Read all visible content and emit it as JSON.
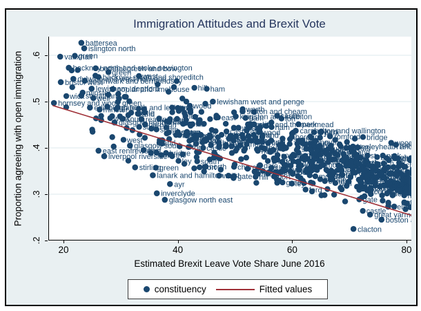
{
  "title": "Immigration Attitudes and Brexit Vote",
  "x_axis": {
    "label": "Estimated Brexit Leave Vote Share June 2016",
    "ticks": [
      20,
      40,
      60,
      80
    ],
    "min": 17.34,
    "max": 80.72
  },
  "y_axis": {
    "label": "Proportion agreeing with open immigration",
    "ticks": [
      {
        "value": 0.2,
        "label": ".2"
      },
      {
        "value": 0.3,
        "label": ".3"
      },
      {
        "value": 0.4,
        "label": ".4"
      },
      {
        "value": 0.5,
        "label": ".5"
      },
      {
        "value": 0.6,
        "label": ".6"
      }
    ],
    "top": 0.6403,
    "bottom": 0.2015
  },
  "legend": {
    "marker_label": "constituency",
    "line_label": "Fitted values"
  },
  "colors": {
    "marker": "#1a476f",
    "point_label_text": "#1a476f",
    "fit_line": "#a03138",
    "graph_bg": "#e9f0f2",
    "plot_bg": "#ffffff",
    "grid": "#dde9ec",
    "title": "#26365e",
    "border": "#000000"
  },
  "chart_data": {
    "type": "scatter",
    "series": [
      {
        "name": "constituency",
        "style": "navy-dots"
      },
      {
        "name": "Fitted values",
        "style": "maroon-line"
      }
    ],
    "x_range_shown": [
      17.34,
      80.72
    ],
    "y_range_shown": [
      0.2015,
      0.6403
    ],
    "grid": "horizontal-only",
    "legend_position": "bottom-center",
    "fitted_line": {
      "x1": 18.0,
      "y1": 0.4915,
      "x2": 80.8,
      "y2": 0.2541
    },
    "labeled_points": [
      {
        "name": "battersea",
        "x": 23.0,
        "y": 0.627
      },
      {
        "name": "islington north",
        "x": 23.5,
        "y": 0.615
      },
      {
        "name": "vauxhall",
        "x": 19.3,
        "y": 0.597
      },
      {
        "name": "hackney north and stoke newington",
        "x": 20.8,
        "y": 0.573
      },
      {
        "name": "bethnal green and bow",
        "x": 25.5,
        "y": 0.572
      },
      {
        "name": "dulwich and west norwood",
        "x": 21.6,
        "y": 0.549
      },
      {
        "name": "hackney south and shoreditch",
        "x": 26.0,
        "y": 0.553
      },
      {
        "name": "bristol west",
        "x": 19.4,
        "y": 0.542
      },
      {
        "name": "southwark and bermondsey",
        "x": 23.6,
        "y": 0.545
      },
      {
        "name": "lewisham, deptford",
        "x": 24.8,
        "y": 0.528
      },
      {
        "name": "poplar and limehouse",
        "x": 28.5,
        "y": 0.527
      },
      {
        "name": "streatham",
        "x": 23.0,
        "y": 0.513
      },
      {
        "name": "lewisham west and penge",
        "x": 46.0,
        "y": 0.5
      },
      {
        "name": "hornsey and wood green",
        "x": 18.2,
        "y": 0.497
      },
      {
        "name": "edinburgh north and leith",
        "x": 24.5,
        "y": 0.487
      },
      {
        "name": "sutton and cheam",
        "x": 51.2,
        "y": 0.479
      },
      {
        "name": "kingston and surbiton",
        "x": 50.0,
        "y": 0.468
      },
      {
        "name": "reading east",
        "x": 33.5,
        "y": 0.462
      },
      {
        "name": "glasgow north",
        "x": 28.8,
        "y": 0.455
      },
      {
        "name": "erith and thamesmead",
        "x": 53.2,
        "y": 0.451
      },
      {
        "name": "carshalton and wallington",
        "x": 60.5,
        "y": 0.437
      },
      {
        "name": "romford",
        "x": 66.5,
        "y": 0.425
      },
      {
        "name": "glasgow south",
        "x": 31.5,
        "y": 0.405
      },
      {
        "name": "bexleyheath and crayford",
        "x": 70.5,
        "y": 0.403
      },
      {
        "name": "east renfrewshire",
        "x": 26.0,
        "y": 0.394
      },
      {
        "name": "liverpool riverside",
        "x": 27.0,
        "y": 0.382
      },
      {
        "name": "stirling",
        "x": 32.4,
        "y": 0.358
      },
      {
        "name": "lanark and hamilton east",
        "x": 35.5,
        "y": 0.341
      },
      {
        "name": "ayr",
        "x": 38.5,
        "y": 0.322
      },
      {
        "name": "inverclyde",
        "x": 36.2,
        "y": 0.302
      },
      {
        "name": "glasgow north east",
        "x": 37.6,
        "y": 0.288
      },
      {
        "name": "great yarmouth",
        "x": 73.5,
        "y": 0.256
      },
      {
        "name": "boston and skegness",
        "x": 75.5,
        "y": 0.245
      },
      {
        "name": "clacton",
        "x": 70.6,
        "y": 0.225
      }
    ],
    "cloud": {
      "note": "dense mass of ~600 constituency points with overlapping unreadable name labels",
      "count": 600,
      "seed": 11,
      "x_min": 18,
      "x_max": 81,
      "x_skew": 0.5,
      "trend_intercept": 0.545,
      "trend_slope": -0.0027,
      "noise_base": 0.06,
      "noise_slope": -0.0004,
      "y_min": 0.215,
      "y_max": 0.625
    },
    "texture_fragments": [
      "north",
      "south",
      "east",
      "west",
      "and",
      "ham",
      "ton",
      "ford",
      "wood",
      "well",
      "field",
      "worth",
      "ley",
      "stone",
      "mouth",
      "bridge",
      "hill",
      "green",
      "park",
      "dale",
      "castle",
      "church",
      "port",
      "minster",
      "borough",
      "shire",
      "land",
      "gate",
      "combe",
      "wick"
    ]
  }
}
